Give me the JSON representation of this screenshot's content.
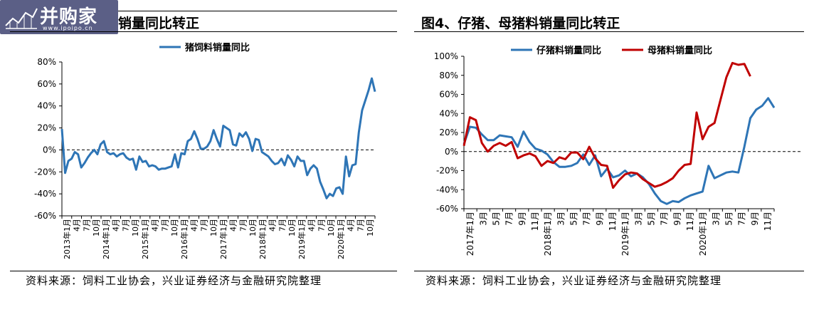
{
  "logo": {
    "text": "并购家",
    "subtext": "www.ipoipo.cn"
  },
  "left": {
    "title": "销量同比转正",
    "source": "资料来源：饲料工业协会，兴业证券经济与金融研究院整理"
  },
  "right": {
    "title": "图4、仔猪、母猪料销量同比转正",
    "source": "资料来源：饲料工业协会，兴业证券经济与金融研究院整理"
  },
  "chart_data": [
    {
      "type": "line",
      "title": "",
      "xlabel": "",
      "ylabel": "",
      "ylim": [
        -60,
        80
      ],
      "y_ticks": [
        "80%",
        "60%",
        "40%",
        "20%",
        "0%",
        "-20%",
        "-40%",
        "-60%"
      ],
      "legend": "top-center",
      "grid": false,
      "reference_line": 0,
      "x_tick_labels": [
        "2013年1月",
        "4月",
        "7月",
        "10月",
        "2014年1月",
        "4月",
        "7月",
        "10月",
        "2015年1月",
        "4月",
        "7月",
        "10月",
        "2016年1月",
        "4月",
        "7月",
        "10月",
        "2017年1月",
        "4月",
        "7月",
        "10月",
        "2018年1月",
        "4月",
        "7月",
        "10月",
        "2019年1月",
        "4月",
        "7月",
        "10月",
        "2020年1月",
        "4月",
        "7月",
        "10月"
      ],
      "series": [
        {
          "name": "猪饲料销量同比",
          "color": "#2e75b6",
          "values": [
            19,
            -21,
            -10,
            -8,
            -2,
            -4,
            -16,
            -12,
            -7,
            -3,
            0,
            -4,
            5,
            8,
            -2,
            -4,
            -3,
            -6,
            -4,
            -3,
            -7,
            -9,
            -8,
            -18,
            -6,
            -11,
            -10,
            -15,
            -14,
            -15,
            -18,
            -17,
            -17,
            -16,
            -15,
            -4,
            -16,
            -3,
            -4,
            8,
            10,
            17,
            10,
            1,
            1,
            3,
            8,
            18,
            10,
            3,
            22,
            20,
            18,
            5,
            4,
            15,
            12,
            16,
            10,
            -1,
            10,
            9,
            -2,
            -4,
            -6,
            -10,
            -13,
            -12,
            -8,
            -14,
            -5,
            -9,
            -15,
            -6,
            -10,
            -10,
            -23,
            -17,
            -14,
            -17,
            -29,
            -36,
            -44,
            -40,
            -42,
            -35,
            -34,
            -40,
            -6,
            -24,
            -14,
            -13,
            16,
            36,
            45,
            54,
            65,
            53
          ]
        }
      ]
    },
    {
      "type": "line",
      "title": "",
      "xlabel": "",
      "ylabel": "",
      "ylim": [
        -60,
        100
      ],
      "y_ticks": [
        "100%",
        "80%",
        "60%",
        "40%",
        "20%",
        "0%",
        "-20%",
        "-40%",
        "-60%"
      ],
      "legend": "top-center",
      "grid": false,
      "reference_line": 0,
      "x_tick_labels": [
        "2017年1月",
        "3月",
        "5月",
        "7月",
        "9月",
        "11月",
        "2018年1月",
        "3月",
        "5月",
        "7月",
        "9月",
        "11月",
        "2019年1月",
        "3月",
        "5月",
        "7月",
        "9月",
        "11月",
        "2020年1月",
        "3月",
        "5月",
        "7月",
        "9月",
        "11月"
      ],
      "series": [
        {
          "name": "仔猪料销量同比",
          "color": "#2e75b6",
          "values": [
            8,
            26,
            25,
            18,
            12,
            12,
            17,
            16,
            15,
            5,
            21,
            10,
            3,
            1,
            -3,
            -11,
            -16,
            -16,
            -15,
            -12,
            -3,
            -14,
            -4,
            -26,
            -18,
            -27,
            -25,
            -20,
            -26,
            -23,
            -27,
            -34,
            -44,
            -52,
            -55,
            -52,
            -53,
            -49,
            -46,
            -44,
            -42,
            -15,
            -28,
            -25,
            -22,
            -21,
            -22,
            5,
            35,
            44,
            48,
            56,
            46
          ]
        },
        {
          "name": "母猪料销量同比",
          "color": "#c00000",
          "values": [
            6,
            36,
            33,
            9,
            0,
            6,
            9,
            6,
            10,
            -7,
            -4,
            -2,
            -5,
            -15,
            -10,
            -12,
            -6,
            -8,
            -1,
            -1,
            -8,
            5,
            -7,
            -14,
            -15,
            -38,
            -30,
            -24,
            -22,
            -23,
            -29,
            -33,
            -37,
            -35,
            -32,
            -28,
            -20,
            -14,
            -13,
            41,
            13,
            26,
            30,
            54,
            78,
            93,
            91,
            92,
            79
          ]
        }
      ]
    }
  ]
}
